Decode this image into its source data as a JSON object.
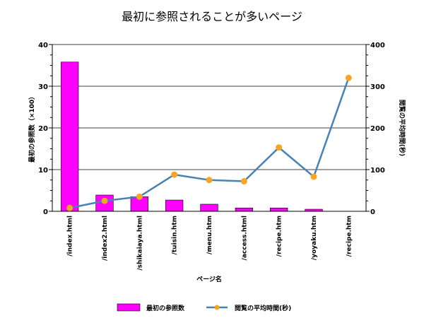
{
  "chart_data": {
    "type": "bar",
    "title": "最初に参照されることが多いページ",
    "xlabel": "ページ名",
    "ylabel_left": "最初の参照数（×100）",
    "ylabel_right": "閲覧の平均時間(秒)",
    "ylim_left": [
      0,
      40
    ],
    "ylim_right": [
      0,
      400
    ],
    "yticks_left": [
      "0",
      "10",
      "20",
      "30",
      "40"
    ],
    "yticks_right": [
      "0",
      "100",
      "200",
      "300",
      "400"
    ],
    "grid": true,
    "legend_position": "bottom",
    "categories": [
      "/index.html",
      "/index2.html",
      "/shikaiaya.html",
      "/tuisin.htm",
      "/menu.htm",
      "/access.html",
      "/recipe.htm",
      "/yoyaku.htm",
      "/recipe.htm"
    ],
    "series": [
      {
        "name": "最初の参照数",
        "type": "bar",
        "axis": "left",
        "color": "#ff00ff",
        "values": [
          35.8,
          3.9,
          3.5,
          2.7,
          1.7,
          0.8,
          0.8,
          0.5,
          0
        ]
      },
      {
        "name": "閲覧の平均時間(秒)",
        "type": "line",
        "axis": "right",
        "color": "#4682b4",
        "marker_color": "#f5a623",
        "values": [
          8,
          25,
          35,
          88,
          75,
          72,
          153,
          83,
          320
        ]
      }
    ]
  }
}
